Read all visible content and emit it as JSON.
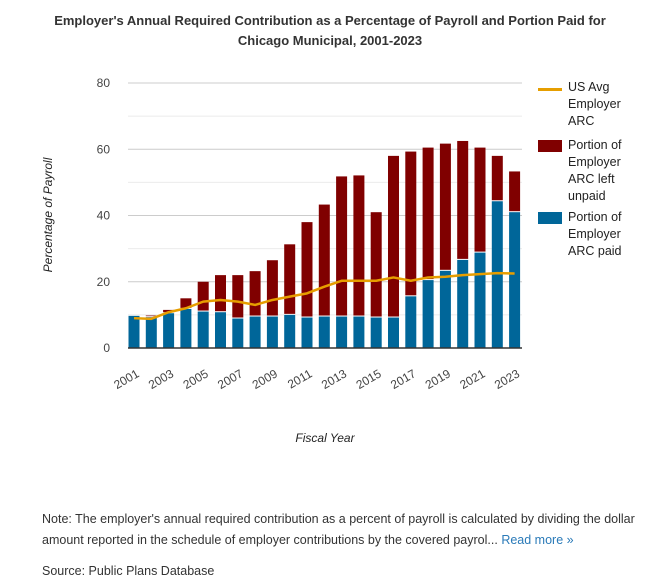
{
  "chart_data": {
    "type": "bar",
    "title": "Employer's Annual Required Contribution as a Percentage of Payroll and Portion Paid for Chicago Municipal, 2001-2023",
    "xlabel": "Fiscal Year",
    "ylabel": "Percentage of Payroll",
    "ylim": [
      0,
      80
    ],
    "yticks": [
      0,
      20,
      40,
      60,
      80
    ],
    "categories": [
      "2001",
      "2002",
      "2003",
      "2004",
      "2005",
      "2006",
      "2007",
      "2008",
      "2009",
      "2010",
      "2011",
      "2012",
      "2013",
      "2014",
      "2015",
      "2016",
      "2017",
      "2018",
      "2019",
      "2020",
      "2021",
      "2022",
      "2023"
    ],
    "xtick_labels": [
      "2001",
      "2003",
      "2005",
      "2007",
      "2009",
      "2011",
      "2013",
      "2015",
      "2017",
      "2019",
      "2021",
      "2023"
    ],
    "series": [
      {
        "name": "Portion of Employer ARC paid",
        "type": "bar",
        "stack": true,
        "color": "#006699",
        "values": [
          9.7,
          9.3,
          10.5,
          11.8,
          11,
          10.8,
          8.9,
          9.5,
          9.5,
          10,
          9.2,
          9.5,
          9.5,
          9.5,
          9.2,
          9.2,
          15.6,
          20.5,
          23.3,
          26.6,
          28.8,
          44.3,
          41
        ]
      },
      {
        "name": "Portion of Employer ARC left unpaid",
        "type": "bar",
        "stack": true,
        "color": "#800000",
        "values": [
          0.3,
          0.5,
          1,
          3.2,
          9,
          11.2,
          13.1,
          13.7,
          17,
          21.3,
          28.8,
          33.8,
          42.3,
          42.6,
          31.8,
          48.8,
          43.7,
          40,
          38.4,
          35.9,
          31.7,
          13.7,
          12.3
        ]
      },
      {
        "name": "US Avg Employer ARC",
        "type": "line",
        "color": "#e69e00",
        "values": [
          9,
          8.8,
          10.8,
          12,
          14,
          14.5,
          14,
          13,
          14.5,
          15.5,
          16.5,
          18.5,
          20.3,
          20.3,
          20.3,
          21.3,
          20.3,
          21.3,
          21.5,
          22,
          22.3,
          22.6,
          22.5
        ]
      }
    ],
    "legend": [
      "US Avg Employer ARC",
      "Portion of Employer ARC left unpaid",
      "Portion of Employer ARC paid"
    ],
    "legend_position": "right",
    "grid": true
  },
  "note": {
    "text": "Note: The employer's annual required contribution as a percent of payroll is calculated by dividing the dollar amount reported in the schedule of employer contributions by the covered payrol...",
    "link": "Read more »"
  },
  "source": "Source: Public Plans Database"
}
